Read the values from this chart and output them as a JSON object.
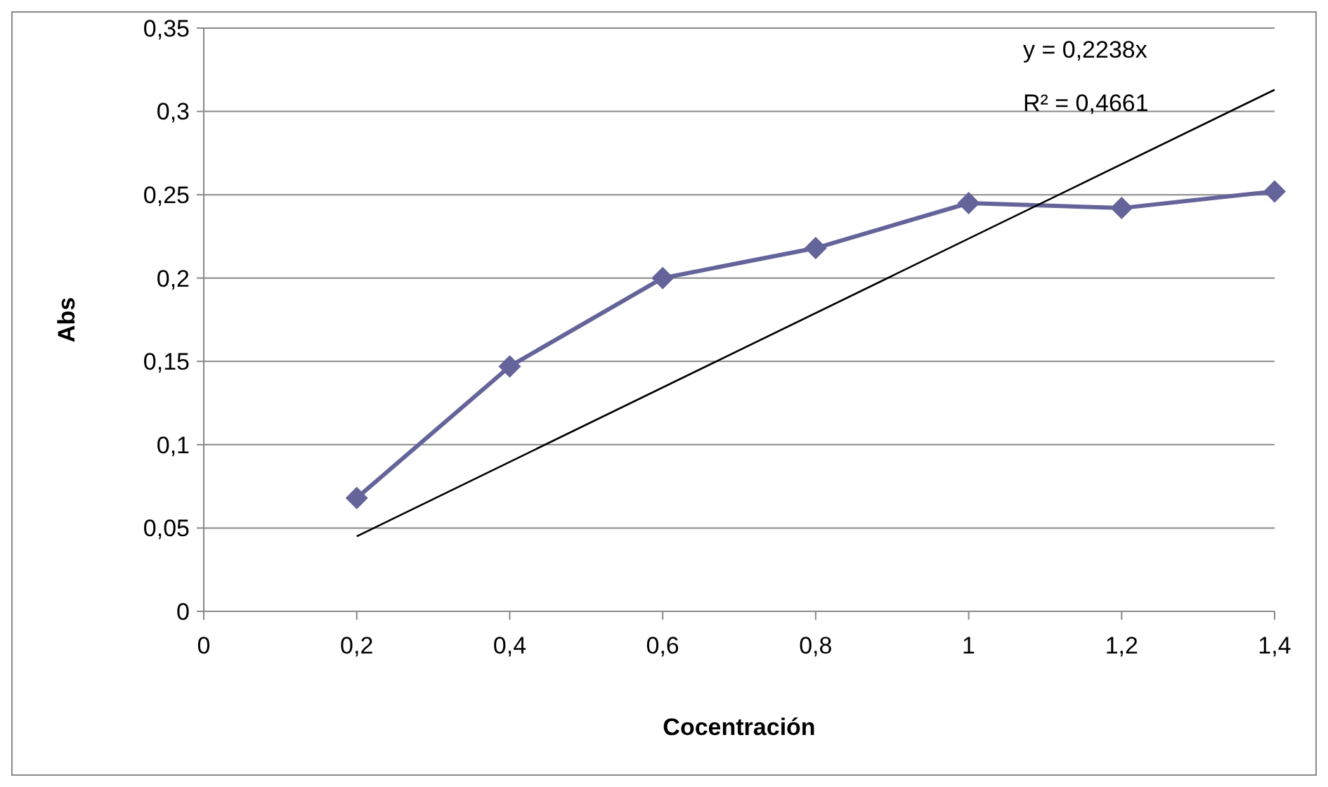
{
  "chart_data": {
    "type": "line",
    "xlabel": "Cocentración",
    "ylabel": "Abs",
    "x": [
      0.2,
      0.4,
      0.6,
      0.8,
      1,
      1.2,
      1.4
    ],
    "series": [
      {
        "color": "#64649a",
        "values": [
          0.068,
          0.147,
          0.2,
          0.218,
          0.245,
          0.242,
          0.252
        ]
      },
      {
        "type": "line",
        "color": "#000000",
        "marker": "none",
        "x": [
          0.2,
          1.4
        ],
        "values": [
          0.045,
          0.313
        ]
      }
    ],
    "xlim": [
      0,
      1.4
    ],
    "xticks": [
      0,
      {
        "value": 0.2,
        "label": "0,2"
      },
      {
        "value": 0.4,
        "label": "0,4"
      },
      {
        "value": 0.6,
        "label": "0,6"
      },
      {
        "value": 0.8,
        "label": "0,8"
      },
      1,
      {
        "value": 1.2,
        "label": "1,2"
      },
      {
        "value": 1.4,
        "label": "1,4"
      }
    ],
    "ylim": [
      0,
      0.35
    ],
    "yticks": [
      0,
      {
        "value": 0.05,
        "label": "0,05"
      },
      {
        "value": 0.1,
        "label": "0,1"
      },
      {
        "value": 0.15,
        "label": "0,15"
      },
      {
        "value": 0.2,
        "label": "0,2"
      },
      {
        "value": 0.25,
        "label": "0,25"
      },
      {
        "value": 0.3,
        "label": "0,3"
      },
      {
        "value": 0.35,
        "label": "0,35"
      }
    ],
    "grid": "y",
    "marker": "diamond",
    "line_style": "solid",
    "annotations": [
      "y = 0,2238x",
      "R² = 0,4661"
    ]
  }
}
